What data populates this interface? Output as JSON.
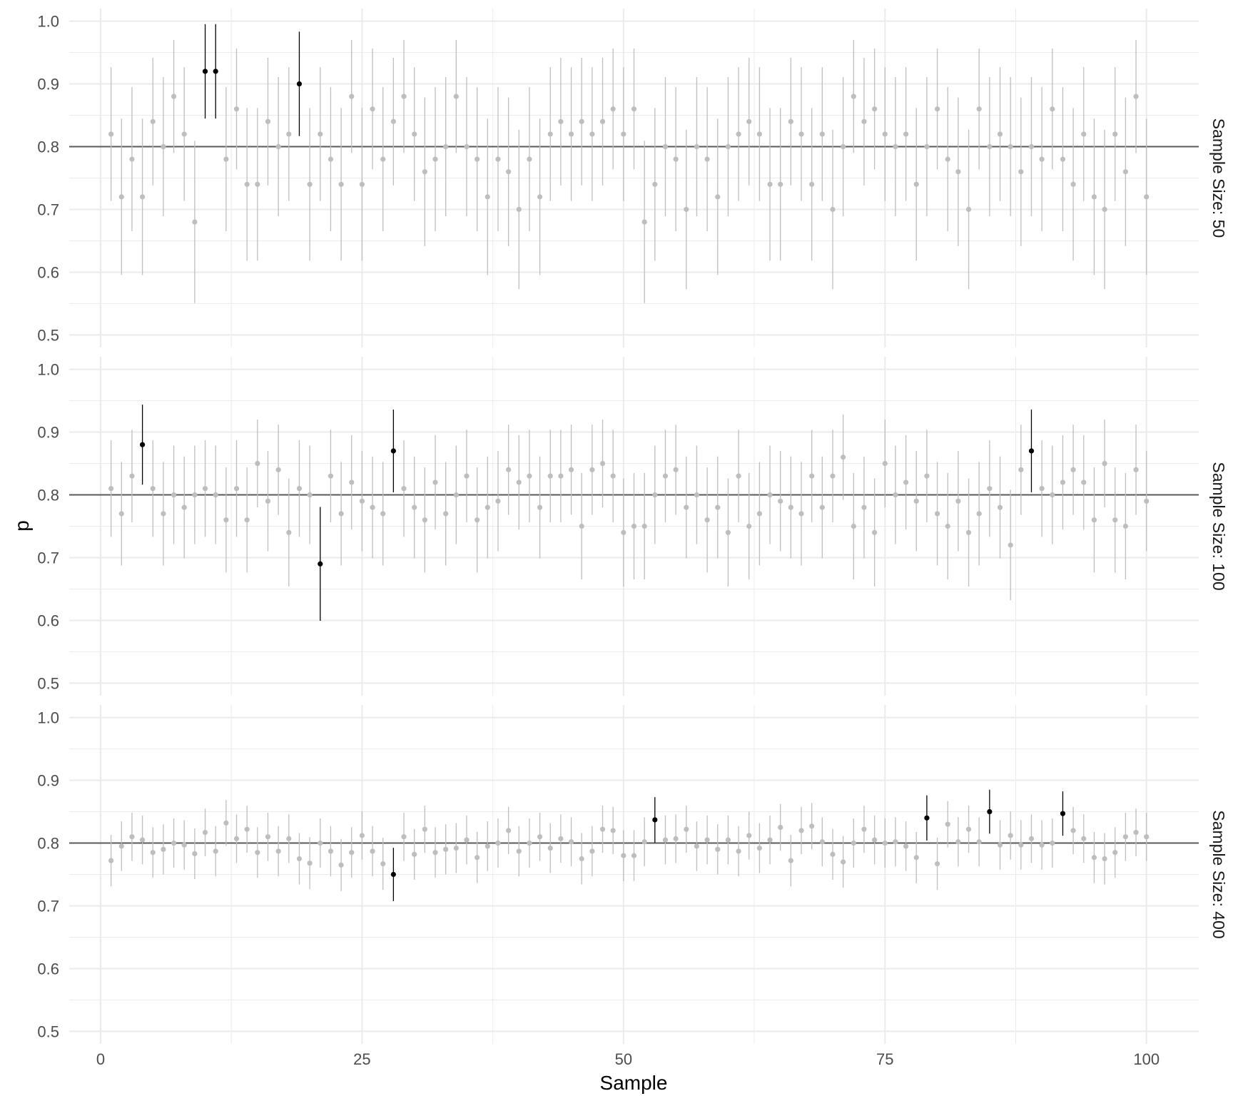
{
  "chart_data": {
    "type": "scatter",
    "xlabel": "Sample",
    "ylabel": "p",
    "xlim": [
      -3,
      105
    ],
    "ylim": [
      0.48,
      1.02
    ],
    "x_ticks": [
      0,
      25,
      50,
      75,
      100
    ],
    "x_tick_labels": [
      "0",
      "25",
      "50",
      "75",
      "100"
    ],
    "y_ticks": [
      0.5,
      0.6,
      0.7,
      0.8,
      0.9,
      1.0
    ],
    "y_tick_labels": [
      "0.5",
      "0.6",
      "0.7",
      "0.8",
      "0.9",
      "1.0"
    ],
    "reference_line": 0.8,
    "grid": true,
    "colors": {
      "covers": "#bebebe",
      "misses": "#000000",
      "reference": "#595959",
      "grid": "#ebebeb"
    },
    "panels": [
      {
        "label": "Sample Size: 50",
        "n": 50,
        "p_hat": [
          0.82,
          0.72,
          0.78,
          0.72,
          0.84,
          0.8,
          0.88,
          0.82,
          0.68,
          0.92,
          0.92,
          0.78,
          0.86,
          0.74,
          0.74,
          0.84,
          0.8,
          0.82,
          0.9,
          0.74,
          0.82,
          0.78,
          0.74,
          0.88,
          0.74,
          0.86,
          0.78,
          0.84,
          0.88,
          0.82,
          0.76,
          0.78,
          0.8,
          0.88,
          0.8,
          0.78,
          0.72,
          0.78,
          0.76,
          0.7,
          0.78,
          0.72,
          0.82,
          0.84,
          0.82,
          0.84,
          0.82,
          0.84,
          0.86,
          0.82,
          0.86,
          0.68,
          0.74,
          0.8,
          0.78,
          0.7,
          0.8,
          0.78,
          0.72,
          0.8,
          0.82,
          0.84,
          0.82,
          0.74,
          0.74,
          0.84,
          0.82,
          0.74,
          0.82,
          0.7,
          0.8,
          0.88,
          0.84,
          0.86,
          0.82,
          0.8,
          0.82,
          0.74,
          0.8,
          0.86,
          0.78,
          0.76,
          0.7,
          0.86,
          0.8,
          0.82,
          0.8,
          0.76,
          0.8,
          0.78,
          0.86,
          0.78,
          0.74,
          0.82,
          0.72,
          0.7,
          0.82,
          0.76,
          0.88,
          0.72
        ],
        "highlighted_samples": [
          10,
          11,
          19
        ]
      },
      {
        "label": "Sample Size: 100",
        "n": 100,
        "p_hat": [
          0.81,
          0.77,
          0.83,
          0.88,
          0.81,
          0.77,
          0.8,
          0.78,
          0.8,
          0.81,
          0.8,
          0.76,
          0.81,
          0.76,
          0.85,
          0.79,
          0.84,
          0.74,
          0.81,
          0.8,
          0.69,
          0.83,
          0.77,
          0.82,
          0.79,
          0.78,
          0.77,
          0.87,
          0.81,
          0.78,
          0.76,
          0.82,
          0.77,
          0.8,
          0.83,
          0.76,
          0.78,
          0.79,
          0.84,
          0.82,
          0.83,
          0.78,
          0.83,
          0.83,
          0.84,
          0.75,
          0.84,
          0.85,
          0.83,
          0.74,
          0.75,
          0.75,
          0.8,
          0.83,
          0.84,
          0.78,
          0.8,
          0.76,
          0.78,
          0.74,
          0.83,
          0.75,
          0.77,
          0.8,
          0.79,
          0.78,
          0.77,
          0.83,
          0.78,
          0.83,
          0.86,
          0.75,
          0.78,
          0.74,
          0.85,
          0.8,
          0.82,
          0.79,
          0.83,
          0.77,
          0.75,
          0.79,
          0.74,
          0.77,
          0.81,
          0.78,
          0.72,
          0.84,
          0.87,
          0.81,
          0.8,
          0.82,
          0.84,
          0.82,
          0.76,
          0.85,
          0.76,
          0.75,
          0.84,
          0.79
        ],
        "highlighted_samples": [
          4,
          21,
          28,
          89
        ]
      },
      {
        "label": "Sample Size: 400",
        "n": 400,
        "p_hat": [
          0.772,
          0.795,
          0.81,
          0.805,
          0.785,
          0.79,
          0.8,
          0.797,
          0.783,
          0.817,
          0.787,
          0.832,
          0.807,
          0.822,
          0.785,
          0.81,
          0.787,
          0.807,
          0.775,
          0.768,
          0.8,
          0.787,
          0.765,
          0.785,
          0.812,
          0.787,
          0.767,
          0.75,
          0.81,
          0.782,
          0.822,
          0.785,
          0.79,
          0.792,
          0.805,
          0.777,
          0.795,
          0.8,
          0.82,
          0.787,
          0.8,
          0.81,
          0.792,
          0.807,
          0.802,
          0.775,
          0.787,
          0.822,
          0.82,
          0.78,
          0.78,
          0.802,
          0.837,
          0.805,
          0.807,
          0.822,
          0.795,
          0.805,
          0.79,
          0.805,
          0.787,
          0.812,
          0.792,
          0.805,
          0.825,
          0.772,
          0.82,
          0.827,
          0.802,
          0.782,
          0.77,
          0.8,
          0.822,
          0.805,
          0.8,
          0.802,
          0.795,
          0.777,
          0.84,
          0.767,
          0.83,
          0.802,
          0.822,
          0.802,
          0.85,
          0.797,
          0.812,
          0.797,
          0.807,
          0.797,
          0.8,
          0.847,
          0.82,
          0.807,
          0.777,
          0.775,
          0.785,
          0.81,
          0.817,
          0.81
        ],
        "highlighted_samples": [
          28,
          53,
          79,
          85,
          92
        ]
      }
    ]
  }
}
